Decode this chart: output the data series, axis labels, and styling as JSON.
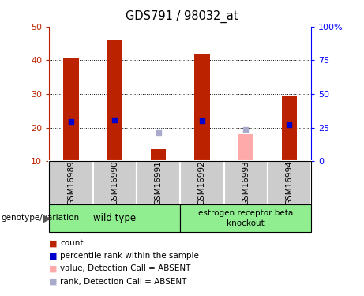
{
  "title": "GDS791 / 98032_at",
  "samples": [
    "GSM16989",
    "GSM16990",
    "GSM16991",
    "GSM16992",
    "GSM16993",
    "GSM16994"
  ],
  "count_values": [
    40.5,
    46.0,
    13.5,
    42.0,
    null,
    29.5
  ],
  "count_absent_values": [
    null,
    null,
    null,
    null,
    18.0,
    null
  ],
  "rank_values": [
    29.5,
    30.7,
    null,
    30.2,
    null,
    27.2
  ],
  "rank_absent_values": [
    null,
    null,
    21.5,
    null,
    23.5,
    null
  ],
  "ylim_left": [
    10,
    50
  ],
  "ylim_right": [
    0,
    100
  ],
  "yticks_left": [
    10,
    20,
    30,
    40,
    50
  ],
  "yticks_right": [
    0,
    25,
    50,
    75,
    100
  ],
  "ytick_labels_right": [
    "0",
    "25",
    "50",
    "75",
    "100%"
  ],
  "bar_color_red": "#bb2200",
  "bar_color_pink": "#ffaaaa",
  "square_color_blue": "#0000cc",
  "square_color_lightblue": "#aaaacc",
  "group1_label": "wild type",
  "group2_label": "estrogen receptor beta\nknockout",
  "group1_indices": [
    0,
    1,
    2
  ],
  "group2_indices": [
    3,
    4,
    5
  ],
  "group_bg_color": "#90ee90",
  "sample_bg_color": "#cccccc",
  "legend_items": [
    {
      "color": "#bb2200",
      "label": "count"
    },
    {
      "color": "#0000cc",
      "label": "percentile rank within the sample"
    },
    {
      "color": "#ffaaaa",
      "label": "value, Detection Call = ABSENT"
    },
    {
      "color": "#aaaacc",
      "label": "rank, Detection Call = ABSENT"
    }
  ],
  "genotype_label": "genotype/variation",
  "bar_width": 0.35,
  "square_size": 25
}
